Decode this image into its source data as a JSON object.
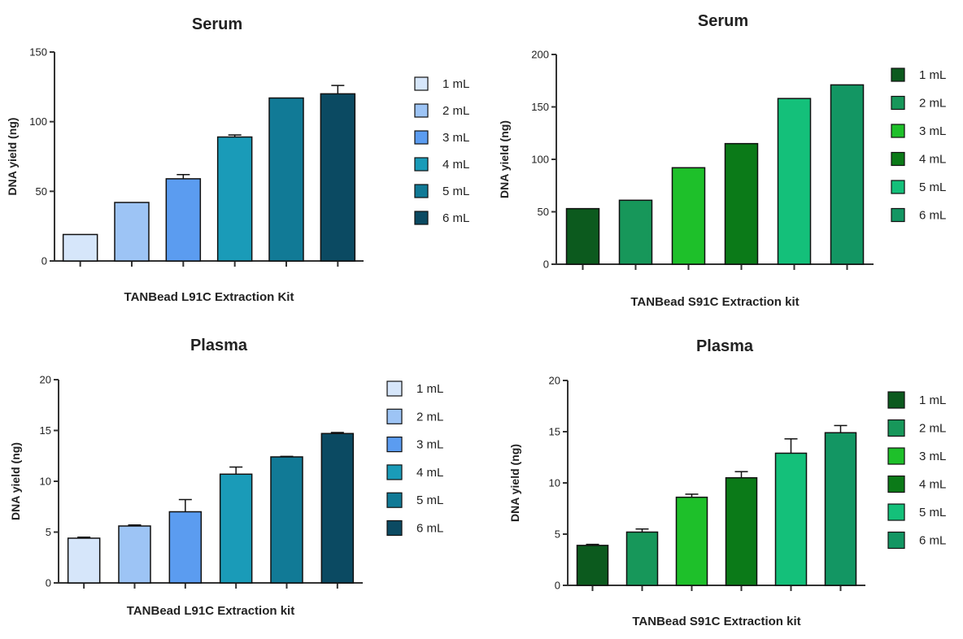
{
  "chart_data": [
    {
      "type": "bar",
      "title": "Serum",
      "xlabel": "TANBead L91C Extraction Kit",
      "ylabel": "DNA yield (ng)",
      "ylim": [
        0,
        150
      ],
      "yticks": [
        "0",
        "50",
        "100",
        "150"
      ],
      "categories": [
        "1 mL",
        "2 mL",
        "3 mL",
        "4 mL",
        "5 mL",
        "6 mL"
      ],
      "values": [
        19,
        42,
        59,
        89,
        117,
        120
      ],
      "errors": [
        0,
        0,
        3,
        1.5,
        0,
        6
      ],
      "colors": [
        "#d6e6fa",
        "#9dc4f5",
        "#5b9cf0",
        "#1a9bb8",
        "#117a96",
        "#0b4a62"
      ],
      "legend": [
        "1 mL",
        "2 mL",
        "3 mL",
        "4 mL",
        "5 mL",
        "6 mL"
      ],
      "legend_position": "right"
    },
    {
      "type": "bar",
      "title": "Serum",
      "xlabel": "TANBead S91C Extraction kit",
      "ylabel": "DNA yield (ng)",
      "ylim": [
        0,
        200
      ],
      "yticks": [
        "0",
        "50",
        "100",
        "150",
        "200"
      ],
      "categories": [
        "1 mL",
        "2 mL",
        "3 mL",
        "4 mL",
        "5 mL",
        "6 mL"
      ],
      "values": [
        53,
        61,
        92,
        115,
        158,
        171
      ],
      "errors": [
        0,
        0,
        0,
        0,
        0,
        0
      ],
      "colors": [
        "#0c5a1e",
        "#17975a",
        "#1ec02a",
        "#0b7a18",
        "#14c07a",
        "#139663"
      ],
      "legend": [
        "1 mL",
        "2 mL",
        "3 mL",
        "4 mL",
        "5 mL",
        "6 mL"
      ],
      "legend_position": "right"
    },
    {
      "type": "bar",
      "title": "Plasma",
      "xlabel": "TANBead L91C Extraction kit",
      "ylabel": "DNA yield (ng)",
      "ylim": [
        0,
        20
      ],
      "yticks": [
        "0",
        "5",
        "10",
        "15",
        "20"
      ],
      "categories": [
        "1 mL",
        "2 mL",
        "3 mL",
        "4 mL",
        "5 mL",
        "6 mL"
      ],
      "values": [
        4.4,
        5.6,
        7.0,
        10.7,
        12.4,
        14.7
      ],
      "errors": [
        0.1,
        0.1,
        1.2,
        0.7,
        0.05,
        0.1
      ],
      "colors": [
        "#d6e6fa",
        "#9dc4f5",
        "#5b9cf0",
        "#1a9bb8",
        "#117a96",
        "#0b4a62"
      ],
      "legend": [
        "1 mL",
        "2 mL",
        "3 mL",
        "4 mL",
        "5 mL",
        "6 mL"
      ],
      "legend_position": "right"
    },
    {
      "type": "bar",
      "title": "Plasma",
      "xlabel": "TANBead S91C Extraction kit",
      "ylabel": "DNA yield (ng)",
      "ylim": [
        0,
        20
      ],
      "yticks": [
        "0",
        "5",
        "10",
        "15",
        "20"
      ],
      "categories": [
        "1 mL",
        "2 mL",
        "3 mL",
        "4 mL",
        "5 mL",
        "6 mL"
      ],
      "values": [
        3.9,
        5.2,
        8.6,
        10.5,
        12.9,
        14.9
      ],
      "errors": [
        0.1,
        0.3,
        0.3,
        0.6,
        1.4,
        0.7
      ],
      "colors": [
        "#0c5a1e",
        "#17975a",
        "#1ec02a",
        "#0b7a18",
        "#14c07a",
        "#139663"
      ],
      "legend": [
        "1 mL",
        "2 mL",
        "3 mL",
        "4 mL",
        "5 mL",
        "6 mL"
      ],
      "legend_position": "right"
    }
  ]
}
